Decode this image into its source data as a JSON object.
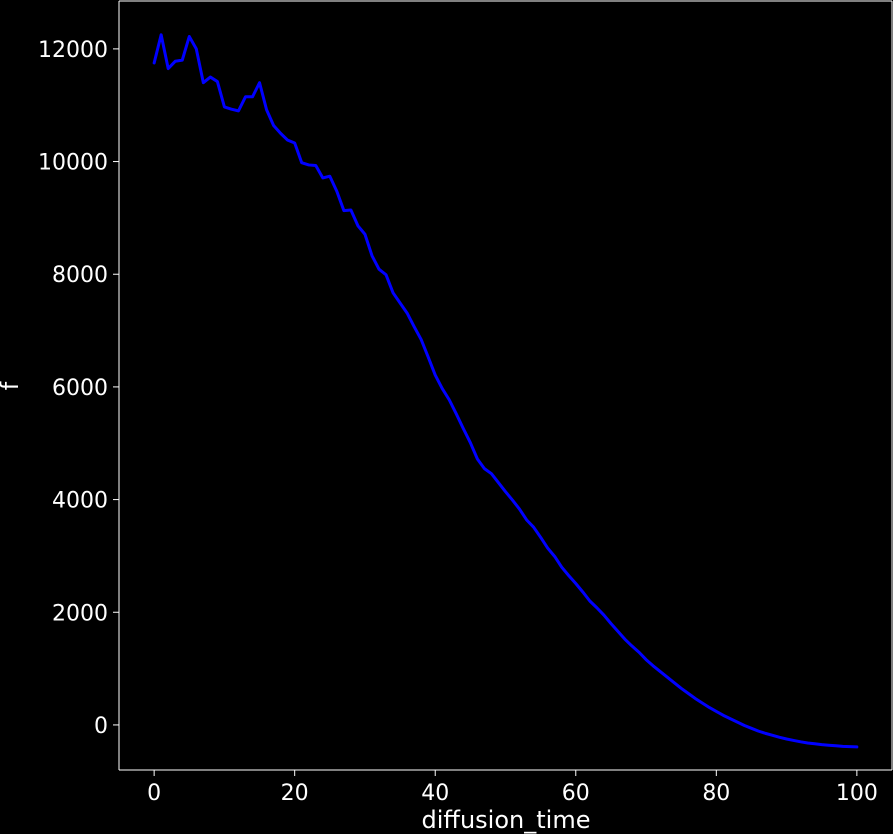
{
  "chart_data": {
    "type": "line",
    "title": "",
    "xlabel": "diffusion_time",
    "ylabel": "f",
    "xlim": [
      -5,
      105
    ],
    "ylim": [
      -800,
      12850
    ],
    "xticks": [
      0,
      20,
      40,
      60,
      80,
      100
    ],
    "yticks": [
      0,
      2000,
      4000,
      6000,
      8000,
      10000,
      12000
    ],
    "grid": false,
    "legend": "none",
    "colors": {
      "background": "#000000",
      "axes": "#ffffff",
      "text": "#ffffff",
      "series": "#0000ff"
    },
    "series": [
      {
        "x": [
          0,
          1,
          2,
          3,
          4,
          5,
          6,
          7,
          8,
          9,
          10,
          11,
          12,
          13,
          14,
          15,
          16,
          17,
          18,
          19,
          20,
          21,
          22,
          23,
          24,
          25,
          26,
          27,
          28,
          29,
          30,
          31,
          32,
          33,
          34,
          35,
          36,
          37,
          38,
          39,
          40,
          41,
          42,
          43,
          44,
          45,
          46,
          47,
          48,
          49,
          50,
          51,
          52,
          53,
          54,
          55,
          56,
          57,
          58,
          59,
          60,
          61,
          62,
          63,
          64,
          65,
          66,
          67,
          68,
          69,
          70,
          71,
          72,
          73,
          74,
          75,
          76,
          77,
          78,
          79,
          80,
          81,
          82,
          83,
          84,
          85,
          86,
          87,
          88,
          89,
          90,
          91,
          92,
          93,
          94,
          95,
          96,
          97,
          98,
          99,
          100
        ],
        "values": [
          11750,
          12250,
          11650,
          11780,
          11800,
          12220,
          12000,
          11400,
          11500,
          11420,
          10970,
          10930,
          10900,
          11150,
          11150,
          11400,
          10920,
          10640,
          10500,
          10380,
          10330,
          9980,
          9940,
          9930,
          9710,
          9740,
          9470,
          9130,
          9140,
          8860,
          8710,
          8330,
          8090,
          7990,
          7670,
          7490,
          7310,
          7070,
          6840,
          6530,
          6210,
          5970,
          5770,
          5520,
          5260,
          5010,
          4720,
          4550,
          4460,
          4300,
          4140,
          3990,
          3830,
          3640,
          3510,
          3330,
          3140,
          2990,
          2800,
          2650,
          2510,
          2360,
          2200,
          2080,
          1950,
          1800,
          1660,
          1520,
          1400,
          1290,
          1160,
          1050,
          950,
          850,
          750,
          650,
          560,
          470,
          390,
          310,
          240,
          170,
          110,
          50,
          -10,
          -60,
          -110,
          -150,
          -185,
          -220,
          -250,
          -275,
          -300,
          -320,
          -335,
          -350,
          -360,
          -370,
          -380,
          -385,
          -390
        ]
      }
    ]
  }
}
